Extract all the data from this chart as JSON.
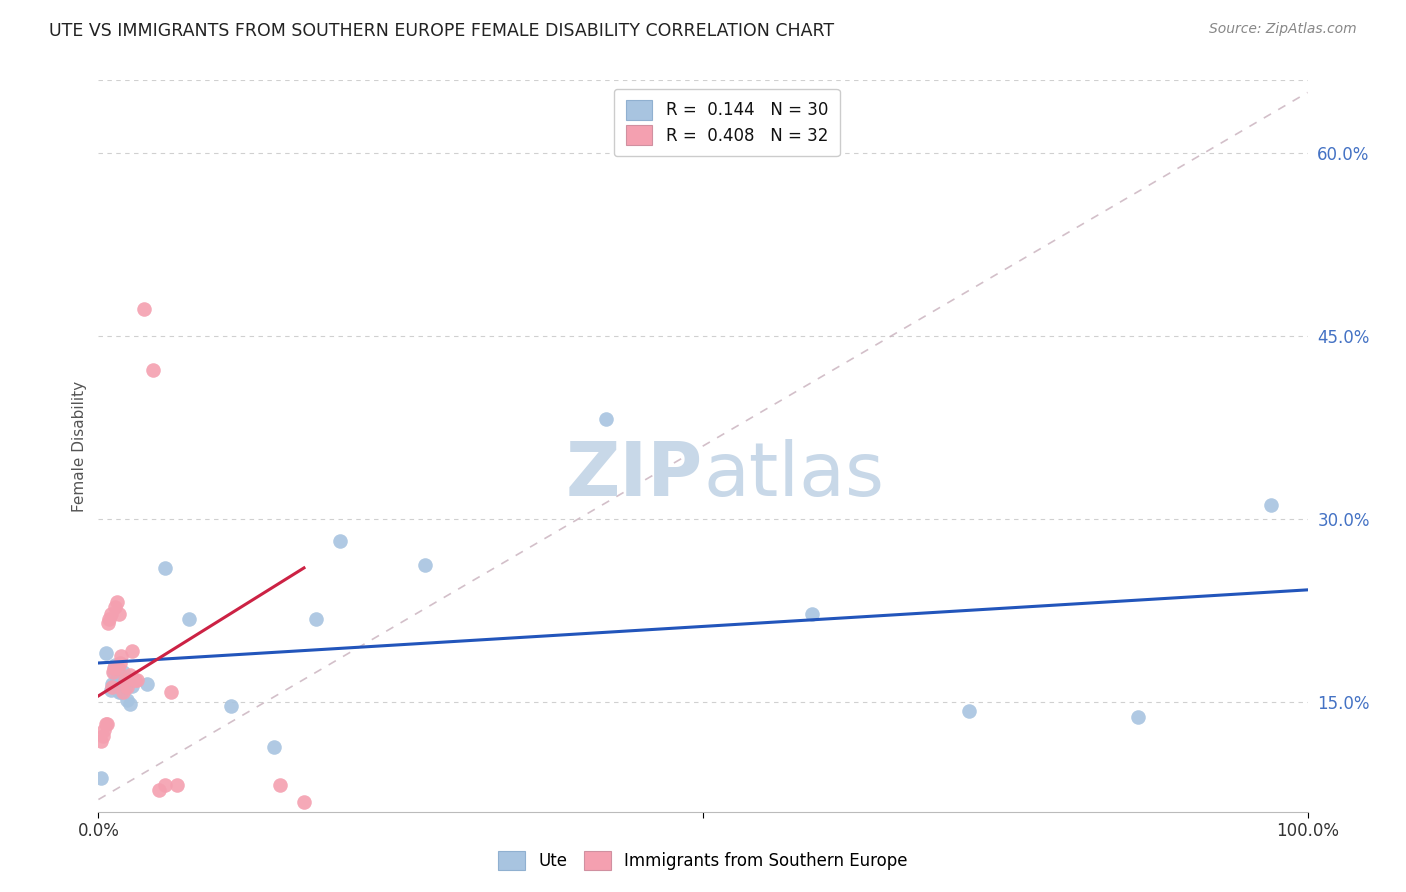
{
  "title": "UTE VS IMMIGRANTS FROM SOUTHERN EUROPE FEMALE DISABILITY CORRELATION CHART",
  "source": "Source: ZipAtlas.com",
  "ylabel": "Female Disability",
  "ytick_labels": [
    "15.0%",
    "30.0%",
    "45.0%",
    "60.0%"
  ],
  "ytick_values": [
    0.15,
    0.3,
    0.45,
    0.6
  ],
  "xlim": [
    0.0,
    1.0
  ],
  "ylim": [
    0.06,
    0.66
  ],
  "legend_entry1": "R =  0.144   N = 30",
  "legend_entry2": "R =  0.408   N = 32",
  "color_blue": "#a8c4e0",
  "color_pink": "#f4a0b0",
  "line_blue": "#2255bb",
  "line_pink": "#cc2244",
  "watermark_color": "#c8d8e8",
  "ute_x": [
    0.002,
    0.006,
    0.01,
    0.011,
    0.012,
    0.013,
    0.014,
    0.015,
    0.016,
    0.017,
    0.018,
    0.019,
    0.02,
    0.022,
    0.024,
    0.026,
    0.028,
    0.04,
    0.055,
    0.075,
    0.11,
    0.145,
    0.18,
    0.2,
    0.27,
    0.42,
    0.59,
    0.72,
    0.86,
    0.97
  ],
  "ute_y": [
    0.088,
    0.19,
    0.16,
    0.165,
    0.162,
    0.175,
    0.18,
    0.168,
    0.163,
    0.158,
    0.172,
    0.158,
    0.175,
    0.162,
    0.152,
    0.148,
    0.163,
    0.165,
    0.26,
    0.218,
    0.147,
    0.113,
    0.218,
    0.282,
    0.262,
    0.382,
    0.222,
    0.143,
    0.138,
    0.312
  ],
  "imm_x": [
    0.002,
    0.004,
    0.005,
    0.006,
    0.007,
    0.008,
    0.009,
    0.01,
    0.011,
    0.012,
    0.013,
    0.014,
    0.015,
    0.016,
    0.017,
    0.018,
    0.019,
    0.02,
    0.022,
    0.024,
    0.026,
    0.028,
    0.03,
    0.032,
    0.038,
    0.045,
    0.05,
    0.055,
    0.06,
    0.065,
    0.15,
    0.17
  ],
  "imm_y": [
    0.118,
    0.122,
    0.127,
    0.132,
    0.132,
    0.215,
    0.218,
    0.222,
    0.162,
    0.175,
    0.178,
    0.228,
    0.232,
    0.178,
    0.222,
    0.182,
    0.188,
    0.158,
    0.168,
    0.162,
    0.172,
    0.192,
    0.168,
    0.168,
    0.472,
    0.422,
    0.078,
    0.082,
    0.158,
    0.082,
    0.082,
    0.068
  ],
  "blue_line_x": [
    0.0,
    1.0
  ],
  "blue_line_y": [
    0.182,
    0.242
  ],
  "pink_line_x": [
    0.0,
    0.17
  ],
  "pink_line_y": [
    0.155,
    0.26
  ]
}
